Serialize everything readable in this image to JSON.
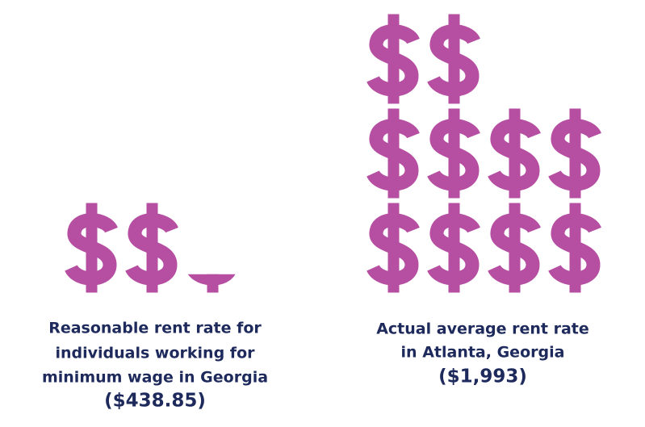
{
  "chart_data": {
    "type": "pictogram",
    "items": [
      {
        "label": [
          "Reasonable rent rate for",
          "individuals working for",
          "minimum wage in Georgia"
        ],
        "value": 438.85,
        "value_label": "($438.85)",
        "color": "#b64fa2"
      },
      {
        "label": [
          "Actual average rent rate",
          "in Atlanta, Georgia"
        ],
        "value": 1993,
        "value_label": "($1,993)",
        "color": "#b64fa2"
      }
    ]
  }
}
